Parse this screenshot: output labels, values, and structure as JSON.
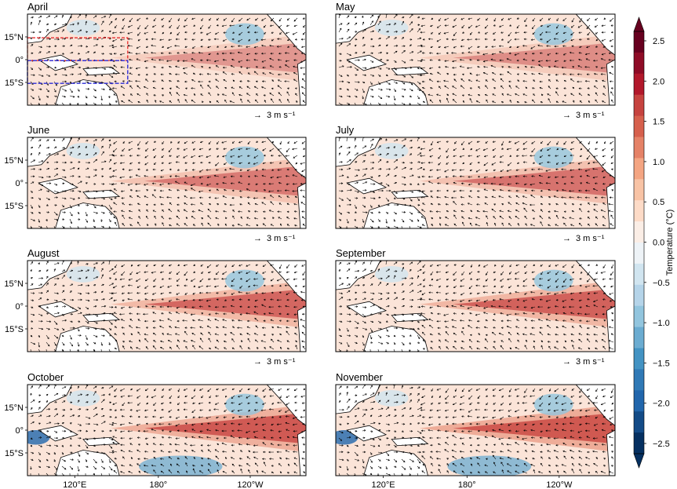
{
  "figure": {
    "panels": [
      {
        "title": "April",
        "scale_label": "3 m s⁻¹",
        "show_lat": true,
        "show_lon": false,
        "boxes": true
      },
      {
        "title": "May",
        "scale_label": "3 m s⁻¹",
        "show_lat": false,
        "show_lon": false,
        "boxes": false
      },
      {
        "title": "June",
        "scale_label": "3 m s⁻¹",
        "show_lat": true,
        "show_lon": false,
        "boxes": false
      },
      {
        "title": "July",
        "scale_label": "3 m s⁻¹",
        "show_lat": false,
        "show_lon": false,
        "boxes": false
      },
      {
        "title": "August",
        "scale_label": "3 m s⁻¹",
        "show_lat": true,
        "show_lon": false,
        "boxes": false
      },
      {
        "title": "September",
        "scale_label": "3 m s⁻¹",
        "show_lat": false,
        "show_lon": false,
        "boxes": false
      },
      {
        "title": "October",
        "scale_label": "",
        "show_lat": true,
        "show_lon": true,
        "boxes": false
      },
      {
        "title": "November",
        "scale_label": "",
        "show_lat": false,
        "show_lon": true,
        "boxes": false
      }
    ],
    "lat_ticks": [
      "15°N",
      "0°",
      "15°S"
    ],
    "lon_ticks": [
      "120°E",
      "180°",
      "120°W"
    ],
    "arrow_glyph": "→",
    "colorbar": {
      "label": "Temperature (°C)",
      "ticks": [
        "2.5",
        "2.0",
        "1.5",
        "1.0",
        "0.5",
        "0.0",
        "−0.5",
        "−1.0",
        "−1.5",
        "−2.0",
        "−2.5"
      ],
      "colors_top_to_bottom": [
        "#67001f",
        "#8e0b26",
        "#b2182b",
        "#c6433f",
        "#d6604d",
        "#e58267",
        "#f4a582",
        "#f8c3a5",
        "#fddbc7",
        "#fbeee6",
        "#eef3f7",
        "#d1e5f0",
        "#b5d4e9",
        "#92c5de",
        "#6bacd1",
        "#4393c3",
        "#3079b6",
        "#2166ac",
        "#134b87",
        "#053061"
      ],
      "extend_top_color": "#67001f",
      "extend_bottom_color": "#053061"
    }
  }
}
